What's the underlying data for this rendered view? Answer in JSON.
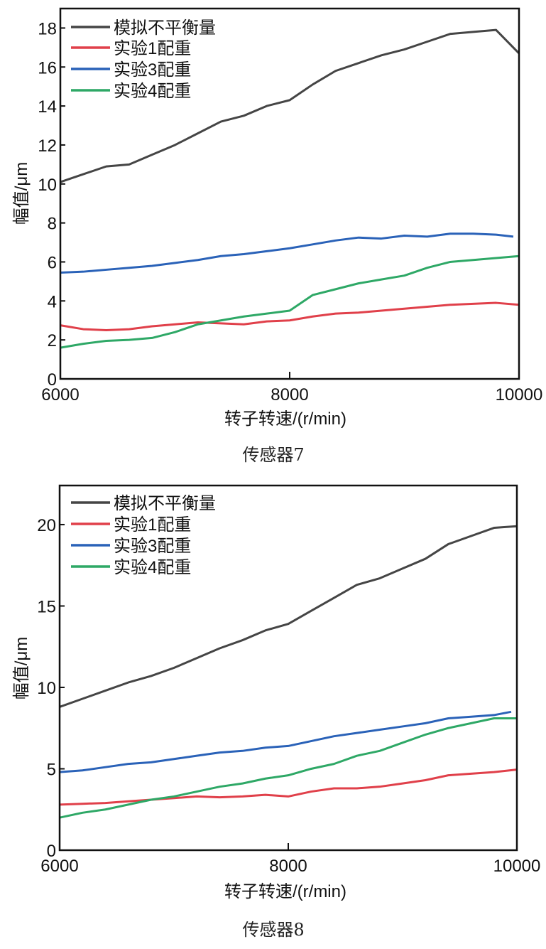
{
  "chart_data": [
    {
      "type": "line",
      "caption": "传感器7",
      "xlabel": "转子转速/(r/min)",
      "ylabel": "幅值/μm",
      "xlim": [
        6000,
        10000
      ],
      "ylim": [
        0,
        19
      ],
      "xticks": [
        6000,
        8000,
        10000
      ],
      "yticks": [
        0,
        2,
        4,
        6,
        8,
        10,
        12,
        14,
        16,
        18
      ],
      "grid": false,
      "legend": "top-left",
      "x": [
        6000,
        6200,
        6400,
        6600,
        6800,
        7000,
        7200,
        7400,
        7600,
        7800,
        8000,
        8200,
        8400,
        8600,
        8800,
        9000,
        9200,
        9400,
        9600,
        9800,
        10000
      ],
      "series": [
        {
          "name": "模拟不平衡量",
          "color": "#454545",
          "values": [
            10.1,
            10.5,
            10.9,
            11.0,
            11.5,
            12.0,
            12.6,
            13.2,
            13.5,
            14.0,
            14.3,
            15.1,
            15.8,
            16.2,
            16.6,
            16.9,
            17.3,
            17.7,
            17.8,
            17.9,
            16.7
          ]
        },
        {
          "name": "实验1配重",
          "color": "#e0404a",
          "values": [
            2.75,
            2.55,
            2.5,
            2.55,
            2.7,
            2.8,
            2.9,
            2.85,
            2.8,
            2.95,
            3.0,
            3.2,
            3.35,
            3.4,
            3.5,
            3.6,
            3.7,
            3.8,
            3.85,
            3.9,
            3.8
          ]
        },
        {
          "name": "实验3配重",
          "color": "#2a62b8",
          "values": [
            5.45,
            5.5,
            5.6,
            5.7,
            5.8,
            5.95,
            6.1,
            6.3,
            6.4,
            6.55,
            6.7,
            6.9,
            7.1,
            7.25,
            7.2,
            7.35,
            7.3,
            7.45,
            7.45,
            7.4,
            7.3
          ]
        },
        {
          "name": "实验4配重",
          "color": "#2ea866",
          "values": [
            1.6,
            1.8,
            1.95,
            2.0,
            2.1,
            2.4,
            2.8,
            3.0,
            3.2,
            3.35,
            3.5,
            4.3,
            4.6,
            4.9,
            5.1,
            5.3,
            5.7,
            6.0,
            6.1,
            6.2,
            6.3
          ]
        }
      ]
    },
    {
      "type": "line",
      "caption": "传感器8",
      "xlabel": "转子转速/(r/min)",
      "ylabel": "幅值/μm",
      "xlim": [
        6000,
        10000
      ],
      "ylim": [
        0,
        22.4
      ],
      "xticks": [
        6000,
        8000,
        10000
      ],
      "yticks": [
        0,
        5,
        10,
        15,
        20
      ],
      "grid": false,
      "legend": "top-left",
      "x": [
        6000,
        6200,
        6400,
        6600,
        6800,
        7000,
        7200,
        7400,
        7600,
        7800,
        8000,
        8200,
        8400,
        8600,
        8800,
        9000,
        9200,
        9400,
        9600,
        9800,
        10000
      ],
      "series": [
        {
          "name": "模拟不平衡量",
          "color": "#454545",
          "values": [
            8.8,
            9.3,
            9.8,
            10.3,
            10.7,
            11.2,
            11.8,
            12.4,
            12.9,
            13.5,
            13.9,
            14.7,
            15.5,
            16.3,
            16.7,
            17.3,
            17.9,
            18.8,
            19.3,
            19.8,
            19.9
          ]
        },
        {
          "name": "实验1配重",
          "color": "#e0404a",
          "values": [
            2.8,
            2.85,
            2.9,
            3.0,
            3.1,
            3.2,
            3.3,
            3.25,
            3.3,
            3.4,
            3.3,
            3.6,
            3.8,
            3.8,
            3.9,
            4.1,
            4.3,
            4.6,
            4.7,
            4.8,
            4.95
          ]
        },
        {
          "name": "实验3配重",
          "color": "#2a62b8",
          "values": [
            4.8,
            4.9,
            5.1,
            5.3,
            5.4,
            5.6,
            5.8,
            6.0,
            6.1,
            6.3,
            6.4,
            6.7,
            7.0,
            7.2,
            7.4,
            7.6,
            7.8,
            8.1,
            8.2,
            8.3,
            8.5
          ]
        },
        {
          "name": "实验4配重",
          "color": "#2ea866",
          "values": [
            2.0,
            2.3,
            2.5,
            2.8,
            3.1,
            3.3,
            3.6,
            3.9,
            4.1,
            4.4,
            4.6,
            5.0,
            5.3,
            5.8,
            6.1,
            6.6,
            7.1,
            7.5,
            7.8,
            8.1,
            8.1
          ]
        }
      ]
    }
  ]
}
